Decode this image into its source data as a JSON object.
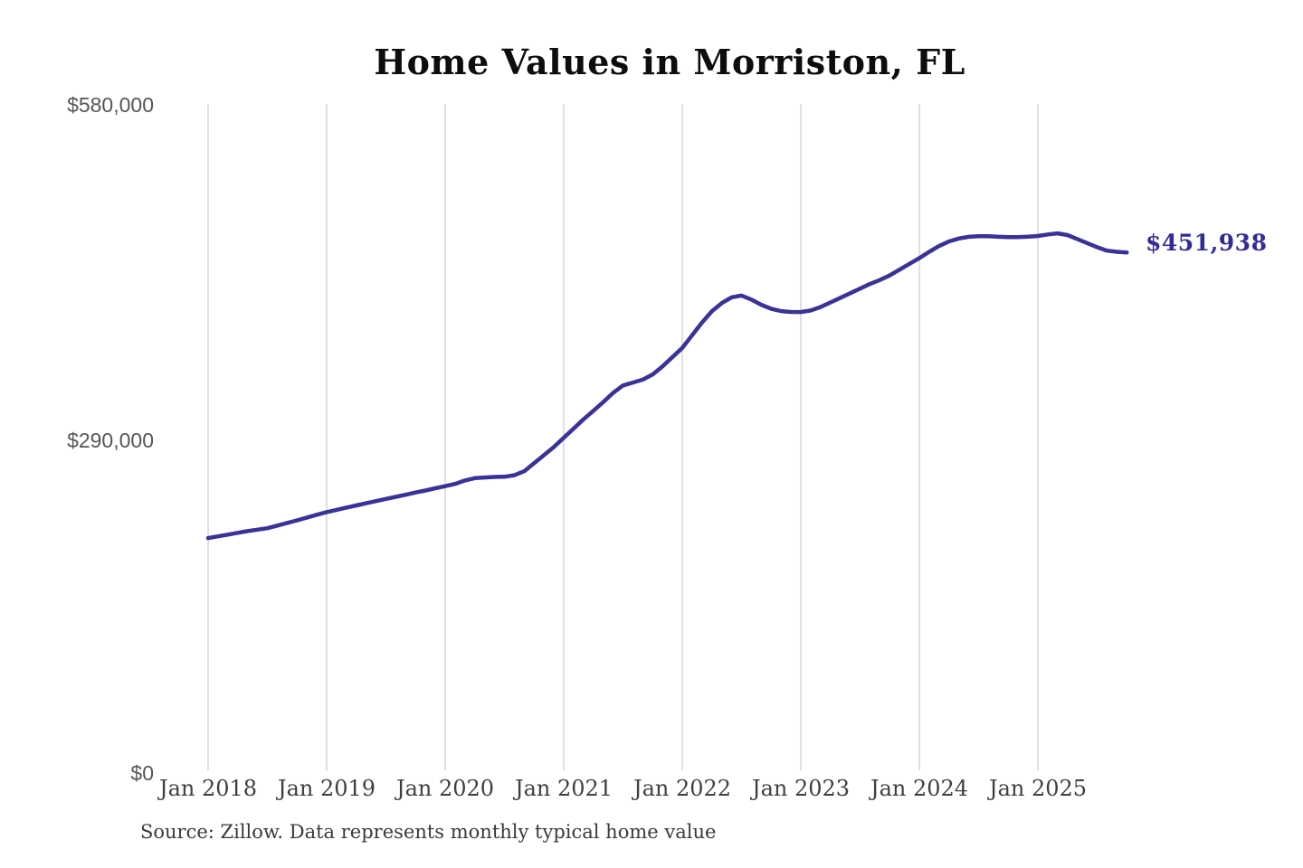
{
  "page": {
    "background": "#ffffff"
  },
  "chart": {
    "title": "Home Values in Morriston, FL",
    "source": "Source: Zillow. Data represents monthly typical home value",
    "end_label": "$451,938",
    "line_color": "#3a3296",
    "end_label_color": "#322c94",
    "gridline_color": "#cccccc",
    "y_ticks": [
      {
        "label": "$580,000",
        "value": 580000
      },
      {
        "label": "$290,000",
        "value": 290000
      },
      {
        "label": "$0",
        "value": 0
      }
    ],
    "x_ticks": [
      "Jan 2018",
      "Jan 2019",
      "Jan 2020",
      "Jan 2021",
      "Jan 2022",
      "Jan 2023",
      "Jan 2024",
      "Jan 2025"
    ]
  },
  "chart_data": {
    "type": "line",
    "title": "Home Values in Morriston, FL",
    "series_name": "Monthly typical home value (Zillow)",
    "unit": "USD",
    "x_frequency": "monthly",
    "x_start": "2018-01",
    "x_end": "2025-10",
    "x_tick_labels": [
      "Jan 2018",
      "Jan 2019",
      "Jan 2020",
      "Jan 2021",
      "Jan 2022",
      "Jan 2023",
      "Jan 2024",
      "Jan 2025"
    ],
    "y_tick_labels": [
      "$0",
      "$290,000",
      "$580,000"
    ],
    "ylim": [
      0,
      580000
    ],
    "grid": "vertical-only",
    "legend": "none",
    "final_value": 451938,
    "final_value_label": "$451,938",
    "values": [
      204000,
      205500,
      207000,
      208500,
      210000,
      211300,
      212500,
      214800,
      217100,
      219400,
      221800,
      224200,
      226500,
      228500,
      230400,
      232300,
      234200,
      236100,
      238000,
      239800,
      241600,
      243500,
      245300,
      247200,
      249000,
      251000,
      254000,
      256000,
      256600,
      257000,
      257200,
      258500,
      262000,
      269000,
      276000,
      283000,
      291000,
      299000,
      307000,
      314500,
      322000,
      330000,
      336500,
      339000,
      341500,
      346000,
      353000,
      361000,
      369000,
      380000,
      391000,
      401000,
      408000,
      413000,
      414500,
      411000,
      406500,
      403000,
      401000,
      400300,
      400200,
      401500,
      404500,
      408500,
      412500,
      416500,
      420500,
      424500,
      428000,
      432000,
      437000,
      442000,
      447000,
      452500,
      457500,
      461500,
      464000,
      465500,
      466000,
      466000,
      465500,
      465200,
      465200,
      465600,
      466200,
      467500,
      468500,
      467000,
      463500,
      460000,
      456500,
      453500,
      452500,
      451938
    ]
  }
}
